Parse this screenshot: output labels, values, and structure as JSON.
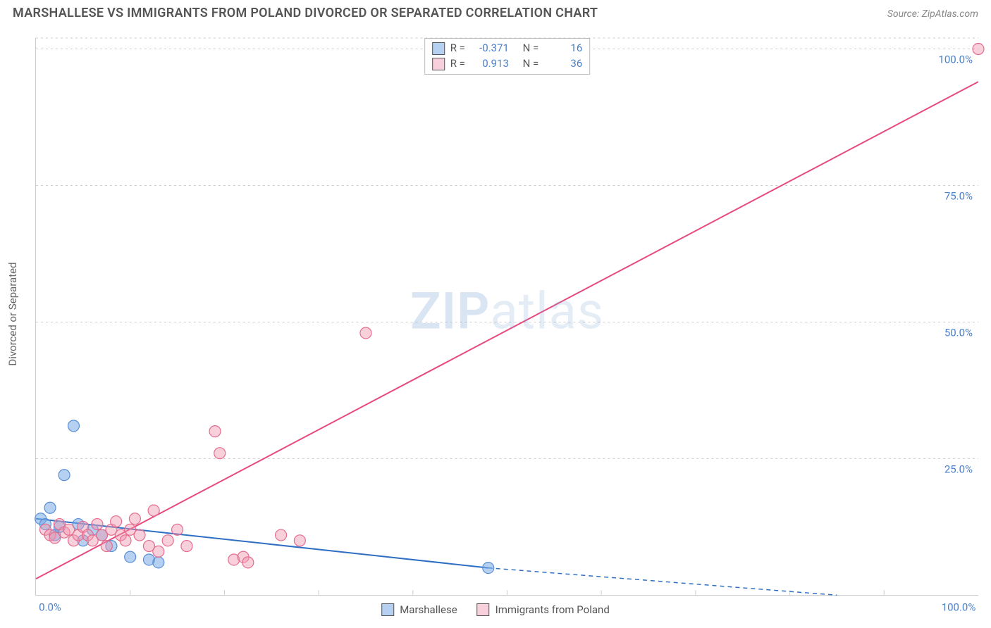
{
  "header": {
    "title": "MARSHALLESE VS IMMIGRANTS FROM POLAND DIVORCED OR SEPARATED CORRELATION CHART",
    "source": "Source: ZipAtlas.com"
  },
  "chart": {
    "type": "scatter",
    "yaxis_title": "Divorced or Separated",
    "xlim": [
      0,
      100
    ],
    "ylim": [
      0,
      102
    ],
    "yticks": [
      25,
      50,
      75,
      100
    ],
    "xticks_minor": [
      10,
      20,
      30,
      40,
      50,
      60,
      70,
      80,
      90
    ],
    "x_labels": [
      {
        "v": 0,
        "t": "0.0%"
      },
      {
        "v": 100,
        "t": "100.0%"
      }
    ],
    "y_labels": [
      {
        "v": 25,
        "t": "25.0%"
      },
      {
        "v": 50,
        "t": "50.0%"
      },
      {
        "v": 75,
        "t": "75.0%"
      },
      {
        "v": 100,
        "t": "100.0%"
      }
    ],
    "marker_radius": 8,
    "series": [
      {
        "name": "Marshallese",
        "swatch_class": "sw-blue",
        "marker_class": "marker-blue",
        "R": "-0.371",
        "N": "16",
        "trend": {
          "x1": 0,
          "y1": 14,
          "x2": 48,
          "y2": 5,
          "class": "trend-blue",
          "ext_x2": 85,
          "ext_y2": -2,
          "ext_class": "trend-blue-dash"
        },
        "points": [
          [
            0.5,
            14
          ],
          [
            1,
            13
          ],
          [
            1.5,
            16
          ],
          [
            2,
            11
          ],
          [
            2.5,
            12.5
          ],
          [
            3,
            22
          ],
          [
            4,
            31
          ],
          [
            4.5,
            13
          ],
          [
            5,
            10
          ],
          [
            6,
            12
          ],
          [
            7,
            11
          ],
          [
            8,
            9
          ],
          [
            10,
            7
          ],
          [
            12,
            6.5
          ],
          [
            13,
            6
          ],
          [
            48,
            5
          ]
        ]
      },
      {
        "name": "Immigrants from Poland",
        "swatch_class": "sw-pink",
        "marker_class": "marker-pink",
        "R": "0.913",
        "N": "36",
        "trend": {
          "x1": 0,
          "y1": 3,
          "x2": 100,
          "y2": 94,
          "class": "trend-pink"
        },
        "points": [
          [
            1,
            12
          ],
          [
            1.5,
            11
          ],
          [
            2,
            10.5
          ],
          [
            2.5,
            13
          ],
          [
            3,
            11.5
          ],
          [
            3.5,
            12
          ],
          [
            4,
            10
          ],
          [
            4.5,
            11
          ],
          [
            5,
            12.5
          ],
          [
            5.5,
            11
          ],
          [
            6,
            10
          ],
          [
            6.5,
            13
          ],
          [
            7,
            11
          ],
          [
            7.5,
            9
          ],
          [
            8,
            12
          ],
          [
            8.5,
            13.5
          ],
          [
            9,
            11
          ],
          [
            9.5,
            10
          ],
          [
            10,
            12
          ],
          [
            10.5,
            14
          ],
          [
            11,
            11
          ],
          [
            12,
            9
          ],
          [
            12.5,
            15.5
          ],
          [
            13,
            8
          ],
          [
            14,
            10
          ],
          [
            15,
            12
          ],
          [
            16,
            9
          ],
          [
            19,
            30
          ],
          [
            19.5,
            26
          ],
          [
            21,
            6.5
          ],
          [
            22,
            7
          ],
          [
            22.5,
            6
          ],
          [
            26,
            11
          ],
          [
            28,
            10
          ],
          [
            35,
            48
          ],
          [
            100,
            100
          ]
        ]
      }
    ],
    "watermark_primary": "ZIP",
    "watermark_secondary": "atlas",
    "legend_top": {
      "R_label": "R =",
      "N_label": "N ="
    },
    "grid_color": "#ccc"
  },
  "legend_bottom": [
    {
      "swatch": "sw-blue",
      "label": "Marshallese"
    },
    {
      "swatch": "sw-pink",
      "label": "Immigrants from Poland"
    }
  ]
}
